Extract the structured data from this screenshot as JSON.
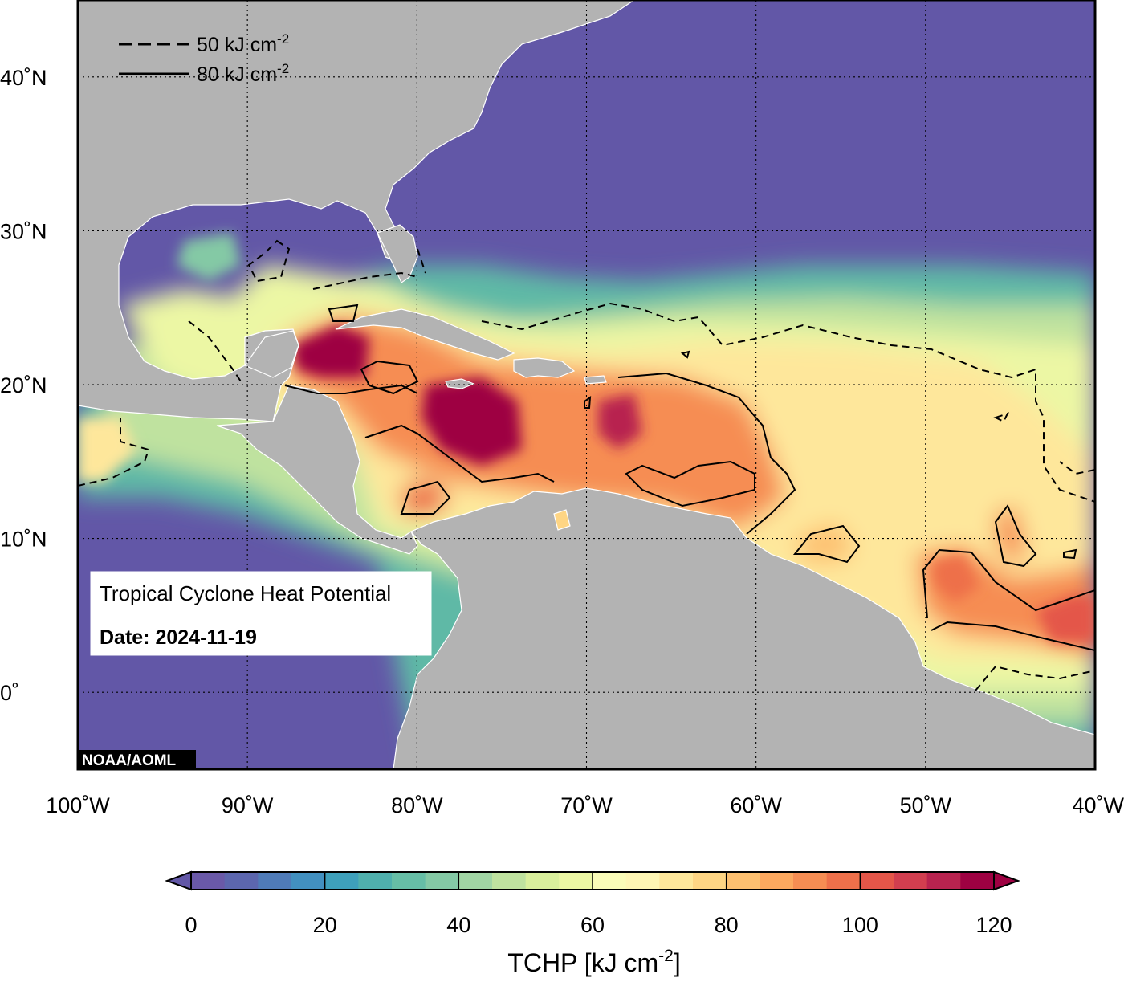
{
  "map": {
    "lat_labels": [
      {
        "lat": 40,
        "text": "40˚N"
      },
      {
        "lat": 30,
        "text": "30˚N"
      },
      {
        "lat": 20,
        "text": "20˚N"
      },
      {
        "lat": 10,
        "text": "10˚N"
      },
      {
        "lat": 0,
        "text": "0˚"
      }
    ],
    "lon_labels": [
      {
        "lon": -100,
        "text": "100˚W"
      },
      {
        "lon": -90,
        "text": "90˚W"
      },
      {
        "lon": -80,
        "text": "80˚W"
      },
      {
        "lon": -70,
        "text": "70˚W"
      },
      {
        "lon": -60,
        "text": "60˚W"
      },
      {
        "lon": -50,
        "text": "50˚W"
      },
      {
        "lon": -40,
        "text": "40˚W"
      }
    ],
    "lon_range": [
      -100,
      -40
    ],
    "lat_range": [
      -5,
      45
    ],
    "gridlines": "dotted",
    "land_color": "#b3b3b3",
    "cold_ocean_color": "#6257a7"
  },
  "legend": {
    "dashed_label": "50 kJ cm",
    "dashed_sup": "-2",
    "solid_label": "80 kJ cm",
    "solid_sup": "-2"
  },
  "info_box": {
    "title": "Tropical Cyclone Heat Potential",
    "date": "Date: 2024-11-19"
  },
  "credit": "NOAA/AOML",
  "colorbar": {
    "min": 0,
    "max": 120,
    "step": 5,
    "tick_labels": [
      "0",
      "20",
      "40",
      "60",
      "80",
      "100",
      "120"
    ],
    "label_main": "TCHP [kJ cm",
    "label_sup": "-2",
    "label_end": "]",
    "colors": [
      "#6a59a8",
      "#5c66ae",
      "#4f7bb8",
      "#4290c0",
      "#3ea0bb",
      "#4fb0ad",
      "#66bea6",
      "#84c9a5",
      "#a1d5a4",
      "#bfe29f",
      "#d9ef9c",
      "#ecf7a4",
      "#fafcb8",
      "#fef6b4",
      "#fee79b",
      "#fed584",
      "#fdc070",
      "#fca85f",
      "#f68d53",
      "#ee704a",
      "#e45649",
      "#d13e4f",
      "#b8234f",
      "#9e0142"
    ]
  }
}
